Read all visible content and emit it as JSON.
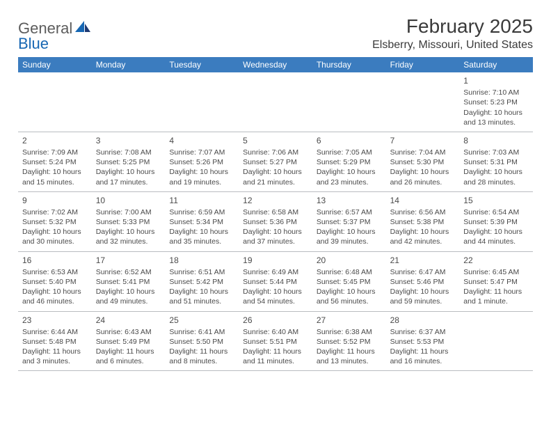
{
  "logo": {
    "text_a": "General",
    "text_b": "Blue"
  },
  "title": "February 2025",
  "location": "Elsberry, Missouri, United States",
  "colors": {
    "header_bg": "#3b7cbf",
    "header_fg": "#ffffff",
    "text": "#4a4a4a",
    "rule": "#b9bcc0",
    "logo_gray": "#5c5c5c",
    "logo_blue": "#1767b3"
  },
  "day_names": [
    "Sunday",
    "Monday",
    "Tuesday",
    "Wednesday",
    "Thursday",
    "Friday",
    "Saturday"
  ],
  "weeks": [
    [
      null,
      null,
      null,
      null,
      null,
      null,
      {
        "n": "1",
        "sr": "Sunrise: 7:10 AM",
        "ss": "Sunset: 5:23 PM",
        "d1": "Daylight: 10 hours",
        "d2": "and 13 minutes."
      }
    ],
    [
      {
        "n": "2",
        "sr": "Sunrise: 7:09 AM",
        "ss": "Sunset: 5:24 PM",
        "d1": "Daylight: 10 hours",
        "d2": "and 15 minutes."
      },
      {
        "n": "3",
        "sr": "Sunrise: 7:08 AM",
        "ss": "Sunset: 5:25 PM",
        "d1": "Daylight: 10 hours",
        "d2": "and 17 minutes."
      },
      {
        "n": "4",
        "sr": "Sunrise: 7:07 AM",
        "ss": "Sunset: 5:26 PM",
        "d1": "Daylight: 10 hours",
        "d2": "and 19 minutes."
      },
      {
        "n": "5",
        "sr": "Sunrise: 7:06 AM",
        "ss": "Sunset: 5:27 PM",
        "d1": "Daylight: 10 hours",
        "d2": "and 21 minutes."
      },
      {
        "n": "6",
        "sr": "Sunrise: 7:05 AM",
        "ss": "Sunset: 5:29 PM",
        "d1": "Daylight: 10 hours",
        "d2": "and 23 minutes."
      },
      {
        "n": "7",
        "sr": "Sunrise: 7:04 AM",
        "ss": "Sunset: 5:30 PM",
        "d1": "Daylight: 10 hours",
        "d2": "and 26 minutes."
      },
      {
        "n": "8",
        "sr": "Sunrise: 7:03 AM",
        "ss": "Sunset: 5:31 PM",
        "d1": "Daylight: 10 hours",
        "d2": "and 28 minutes."
      }
    ],
    [
      {
        "n": "9",
        "sr": "Sunrise: 7:02 AM",
        "ss": "Sunset: 5:32 PM",
        "d1": "Daylight: 10 hours",
        "d2": "and 30 minutes."
      },
      {
        "n": "10",
        "sr": "Sunrise: 7:00 AM",
        "ss": "Sunset: 5:33 PM",
        "d1": "Daylight: 10 hours",
        "d2": "and 32 minutes."
      },
      {
        "n": "11",
        "sr": "Sunrise: 6:59 AM",
        "ss": "Sunset: 5:34 PM",
        "d1": "Daylight: 10 hours",
        "d2": "and 35 minutes."
      },
      {
        "n": "12",
        "sr": "Sunrise: 6:58 AM",
        "ss": "Sunset: 5:36 PM",
        "d1": "Daylight: 10 hours",
        "d2": "and 37 minutes."
      },
      {
        "n": "13",
        "sr": "Sunrise: 6:57 AM",
        "ss": "Sunset: 5:37 PM",
        "d1": "Daylight: 10 hours",
        "d2": "and 39 minutes."
      },
      {
        "n": "14",
        "sr": "Sunrise: 6:56 AM",
        "ss": "Sunset: 5:38 PM",
        "d1": "Daylight: 10 hours",
        "d2": "and 42 minutes."
      },
      {
        "n": "15",
        "sr": "Sunrise: 6:54 AM",
        "ss": "Sunset: 5:39 PM",
        "d1": "Daylight: 10 hours",
        "d2": "and 44 minutes."
      }
    ],
    [
      {
        "n": "16",
        "sr": "Sunrise: 6:53 AM",
        "ss": "Sunset: 5:40 PM",
        "d1": "Daylight: 10 hours",
        "d2": "and 46 minutes."
      },
      {
        "n": "17",
        "sr": "Sunrise: 6:52 AM",
        "ss": "Sunset: 5:41 PM",
        "d1": "Daylight: 10 hours",
        "d2": "and 49 minutes."
      },
      {
        "n": "18",
        "sr": "Sunrise: 6:51 AM",
        "ss": "Sunset: 5:42 PM",
        "d1": "Daylight: 10 hours",
        "d2": "and 51 minutes."
      },
      {
        "n": "19",
        "sr": "Sunrise: 6:49 AM",
        "ss": "Sunset: 5:44 PM",
        "d1": "Daylight: 10 hours",
        "d2": "and 54 minutes."
      },
      {
        "n": "20",
        "sr": "Sunrise: 6:48 AM",
        "ss": "Sunset: 5:45 PM",
        "d1": "Daylight: 10 hours",
        "d2": "and 56 minutes."
      },
      {
        "n": "21",
        "sr": "Sunrise: 6:47 AM",
        "ss": "Sunset: 5:46 PM",
        "d1": "Daylight: 10 hours",
        "d2": "and 59 minutes."
      },
      {
        "n": "22",
        "sr": "Sunrise: 6:45 AM",
        "ss": "Sunset: 5:47 PM",
        "d1": "Daylight: 11 hours",
        "d2": "and 1 minute."
      }
    ],
    [
      {
        "n": "23",
        "sr": "Sunrise: 6:44 AM",
        "ss": "Sunset: 5:48 PM",
        "d1": "Daylight: 11 hours",
        "d2": "and 3 minutes."
      },
      {
        "n": "24",
        "sr": "Sunrise: 6:43 AM",
        "ss": "Sunset: 5:49 PM",
        "d1": "Daylight: 11 hours",
        "d2": "and 6 minutes."
      },
      {
        "n": "25",
        "sr": "Sunrise: 6:41 AM",
        "ss": "Sunset: 5:50 PM",
        "d1": "Daylight: 11 hours",
        "d2": "and 8 minutes."
      },
      {
        "n": "26",
        "sr": "Sunrise: 6:40 AM",
        "ss": "Sunset: 5:51 PM",
        "d1": "Daylight: 11 hours",
        "d2": "and 11 minutes."
      },
      {
        "n": "27",
        "sr": "Sunrise: 6:38 AM",
        "ss": "Sunset: 5:52 PM",
        "d1": "Daylight: 11 hours",
        "d2": "and 13 minutes."
      },
      {
        "n": "28",
        "sr": "Sunrise: 6:37 AM",
        "ss": "Sunset: 5:53 PM",
        "d1": "Daylight: 11 hours",
        "d2": "and 16 minutes."
      },
      null
    ]
  ]
}
